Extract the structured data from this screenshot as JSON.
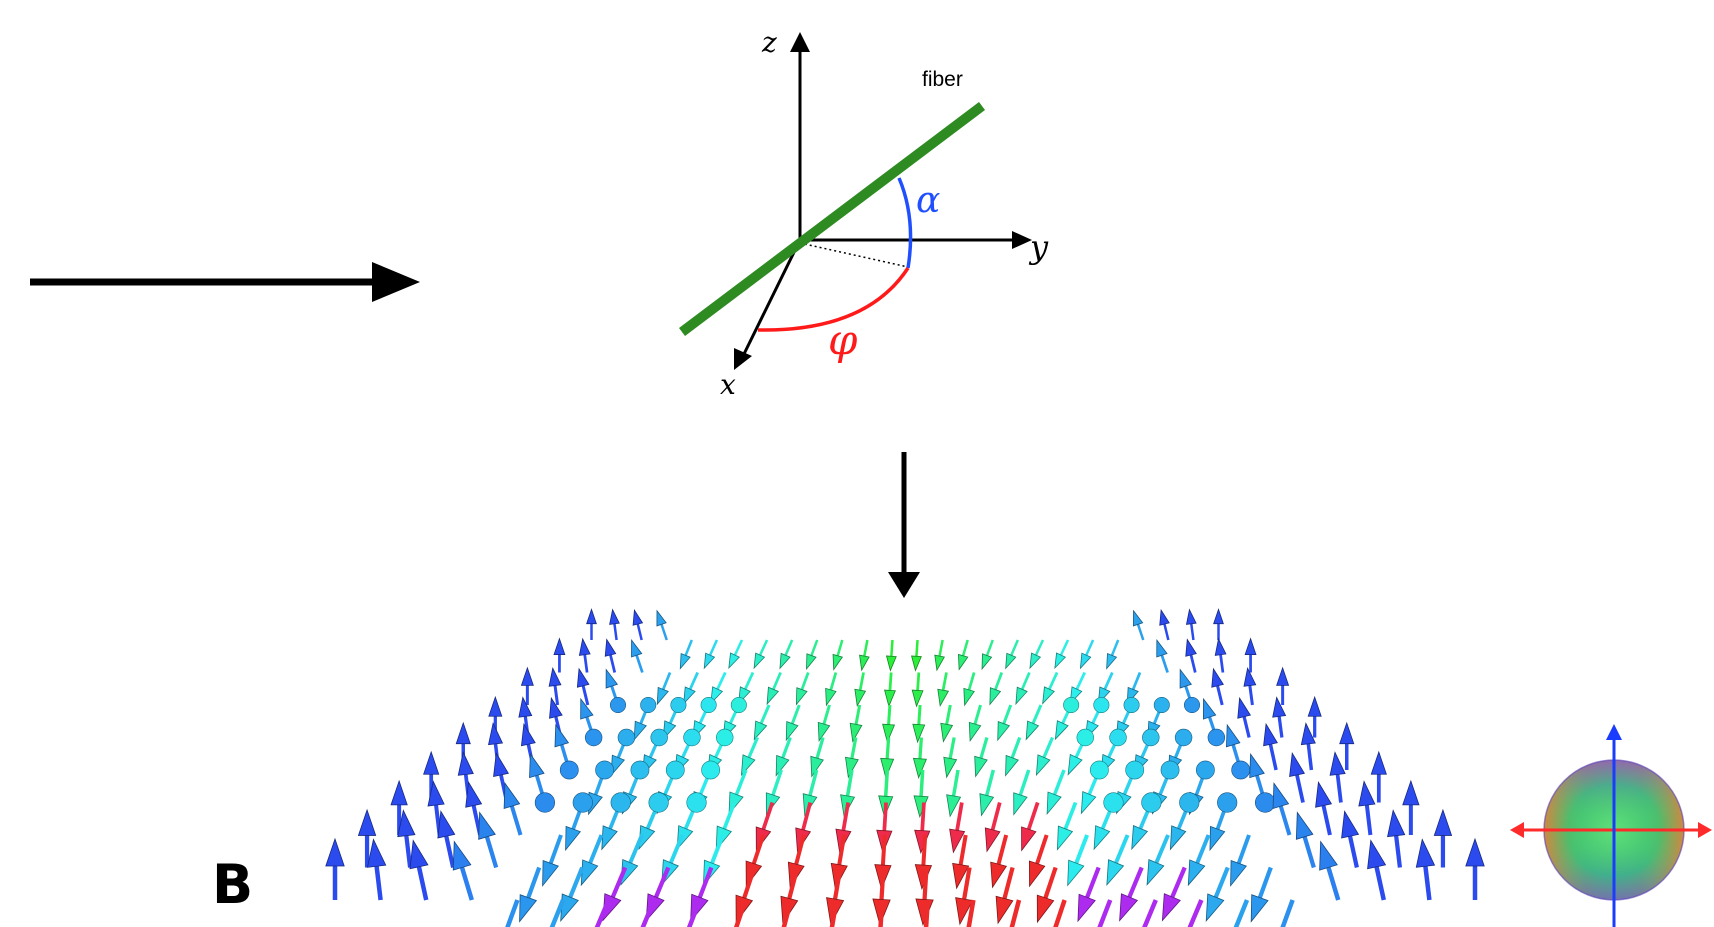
{
  "diagram": {
    "axes": {
      "x": "x",
      "y": "y",
      "z": "z"
    },
    "fiber_label": "fiber",
    "alpha_label": "α",
    "phi_label": "φ",
    "panel_label": "B"
  },
  "colors": {
    "fiber": "#2e8b22",
    "alpha_arc": "#1f4fff",
    "phi_arc": "#ff1a1a",
    "axis": "#000000",
    "legend_axis_horizontal": "#ff2a2a",
    "legend_axis_vertical": "#1a3cff"
  },
  "icons": {
    "left_arrow": "arrow-right-icon",
    "down_arrow": "arrow-down-icon",
    "orientation_sphere": "color-sphere-icon"
  }
}
